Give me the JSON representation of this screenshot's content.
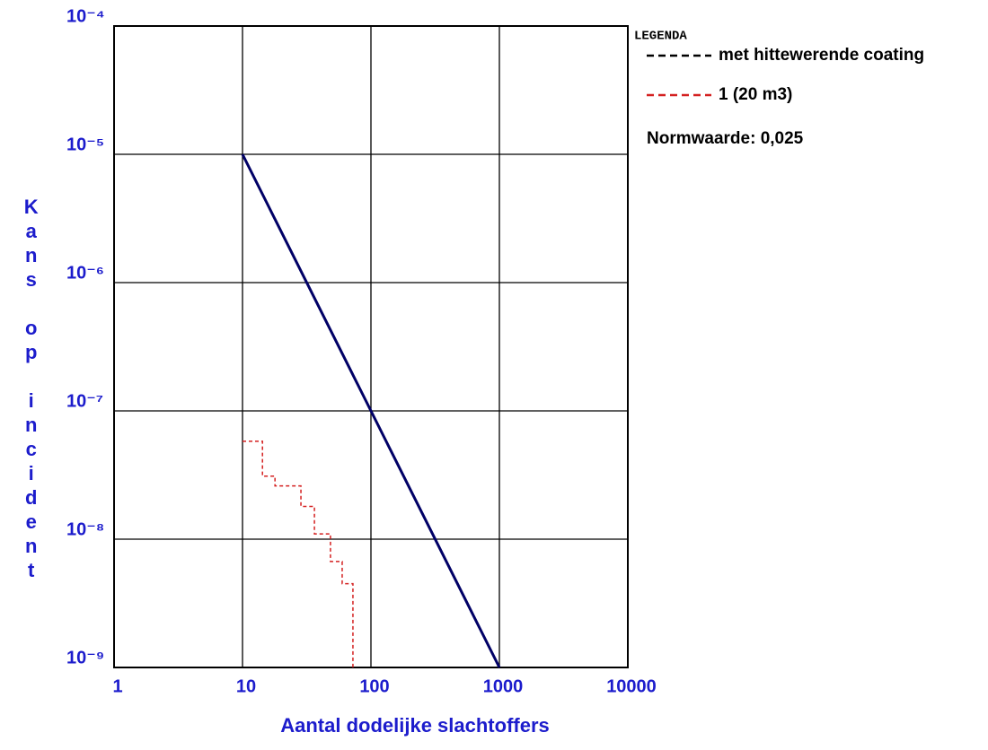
{
  "chart_data": {
    "type": "line",
    "x_label": "Aantal dodelijke slachtoffers",
    "y_label": "Kans op incident",
    "xscale": "log",
    "yscale": "log",
    "grid": true,
    "xlim": [
      1,
      10000
    ],
    "xticks": [
      1,
      10,
      100,
      1000,
      10000
    ],
    "ylim": [
      1e-09,
      0.0001
    ],
    "yticks": [
      {
        "value": 1e-09,
        "label": "10⁻⁹"
      },
      {
        "value": 1e-08,
        "label": "10⁻⁸"
      },
      {
        "value": 1e-07,
        "label": "10⁻⁷"
      },
      {
        "value": 1e-06,
        "label": "10⁻⁶"
      },
      {
        "value": 1e-05,
        "label": "10⁻⁵"
      },
      {
        "value": 0.0001,
        "label": "10⁻⁴"
      }
    ],
    "legend_title": "LEGENDA",
    "annotation": "Normwaarde: 0,025",
    "norm_line": {
      "color": "#000066",
      "x": [
        10,
        100,
        1000
      ],
      "values": [
        1e-05,
        1e-07,
        1e-09
      ]
    },
    "series": [
      {
        "name": "met hittewerende coating",
        "color": "#000000",
        "dashed": true,
        "step": true,
        "x": [],
        "values": []
      },
      {
        "name": "1 (20 m3)",
        "color": "#d42020",
        "dashed": true,
        "step": true,
        "x": [
          10,
          14.3,
          17.9,
          28.5,
          36.3,
          48.4,
          59.7,
          72.4
        ],
        "values": [
          5.8e-08,
          3.1e-08,
          2.6e-08,
          1.8e-08,
          1.1e-08,
          6.7e-09,
          4.5e-09,
          1e-09
        ]
      }
    ]
  }
}
